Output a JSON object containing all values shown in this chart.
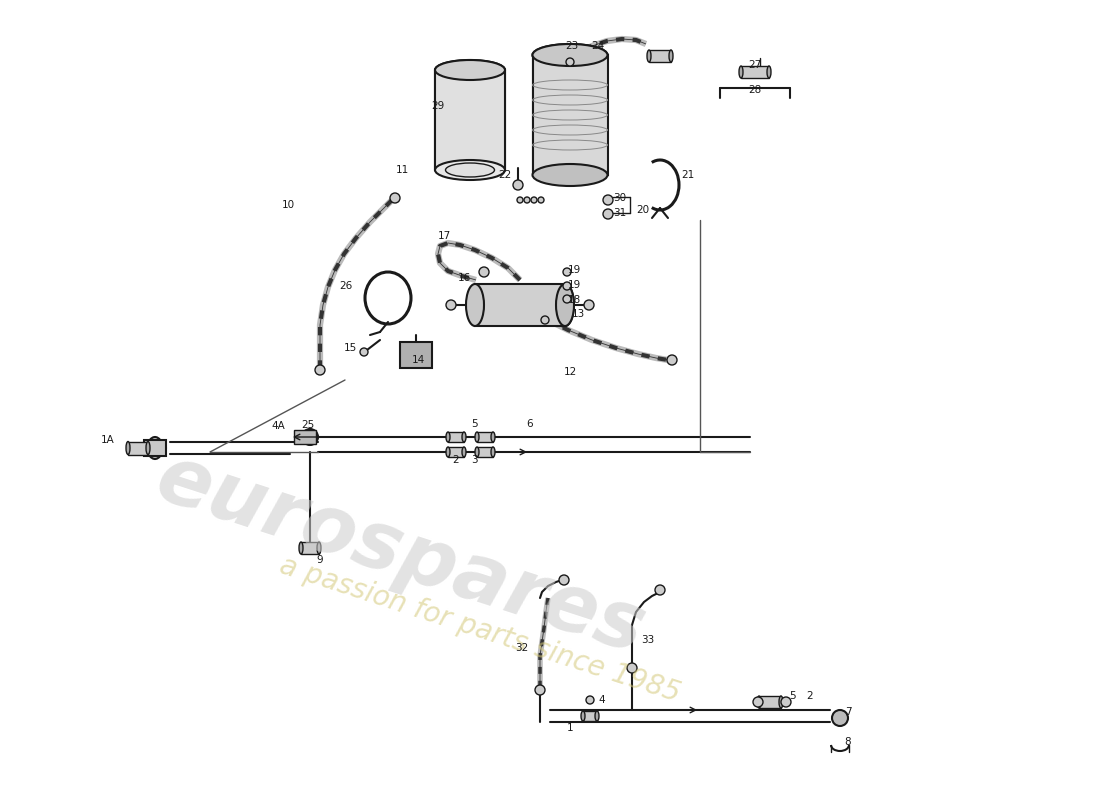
{
  "background_color": "#ffffff",
  "line_color": "#1a1a1a",
  "watermark1": "eurospares",
  "watermark2": "a passion for parts since 1985",
  "wm_color": "#cccccc",
  "wm_color2": "#d4c87a"
}
